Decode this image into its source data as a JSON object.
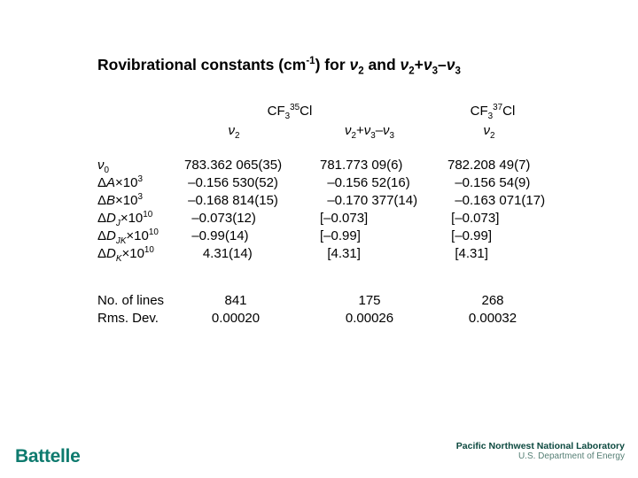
{
  "slide": {
    "title_html": "Rovibrational constants (cm<sup>-1</sup>) for <i>ν</i><sub>2</sub> and <i>ν</i><sub>2</sub>+<i>ν</i><sub>3</sub>–<i>ν</i><sub>3</sub>"
  },
  "table": {
    "group_headers": [
      "CF<sub>3</sub><sup>35</sup>Cl",
      "CF<sub>3</sub><sup>37</sup>Cl"
    ],
    "col_headers": [
      "<i>ν</i><sub>2</sub>",
      "<i>ν</i><sub>2</sub>+<i>ν</i><sub>3</sub>–<i>ν</i><sub>3</sub>",
      "<i>ν</i><sub>2</sub>"
    ],
    "row_labels": [
      "<i>ν</i><sub>0</sub>",
      "Δ<i>A</i>×10<sup>3</sup>",
      "Δ<i>B</i>×10<sup>3</sup>",
      "Δ<i>D</i><sub><i>J</i></sub>×10<sup>10</sup>",
      "Δ<i>D</i><sub><i>JK</i></sub>×10<sup>10</sup>",
      "Δ<i>D</i><sub><i>K</i></sub>×10<sup>10</sup>"
    ],
    "columns": [
      {
        "values": [
          "783.362 065(35)",
          " –0.156 530(52)",
          " –0.168 814(15)",
          "  –0.073(12)",
          "  –0.99(14)",
          "     4.31(14)"
        ]
      },
      {
        "values": [
          "781.773 09(6)",
          "  –0.156 52(16)",
          "  –0.170 377(14)",
          "[–0.073]",
          "[–0.99]",
          "  [4.31]"
        ]
      },
      {
        "values": [
          "782.208 49(7)",
          "  –0.156 54(9)",
          "  –0.163 071(17)",
          " [–0.073]",
          " [–0.99]",
          "  [4.31]"
        ]
      }
    ],
    "summary": {
      "labels": [
        "No. of lines",
        "Rms. Dev."
      ],
      "columns": [
        [
          "841",
          "0.00020"
        ],
        [
          "175",
          "0.00026"
        ],
        [
          "268",
          "0.00032"
        ]
      ]
    }
  },
  "footer": {
    "battelle": "Battelle",
    "pnnl_line1": "Pacific Northwest National Laboratory",
    "pnnl_line2": "U.S. Department of Energy"
  },
  "colors": {
    "background": "#ffffff",
    "text": "#000000",
    "battelle_teal": "#0e7a6e",
    "pnnl_dark_teal": "#0c493f",
    "pnnl_light_teal": "#567f75"
  }
}
